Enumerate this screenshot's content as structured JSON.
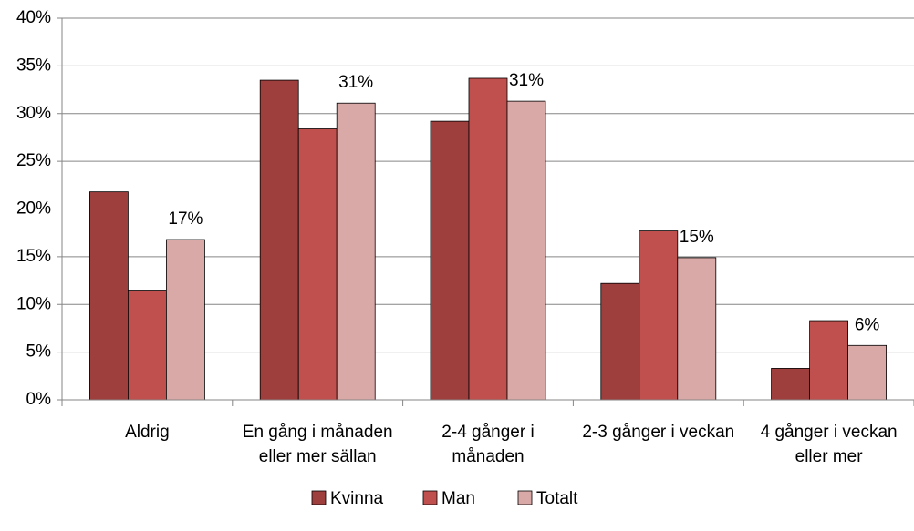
{
  "chart_data": {
    "type": "bar",
    "categories": [
      "Aldrig",
      "En gång i månaden eller mer sällan",
      "2-4 gånger i månaden",
      "2-3 gånger i veckan",
      "4 gånger i veckan eller mer"
    ],
    "series": [
      {
        "name": "Kvinna",
        "color": "#9e3f3e",
        "values": [
          21.8,
          33.5,
          29.2,
          12.2,
          3.3
        ]
      },
      {
        "name": "Man",
        "color": "#c0504d",
        "values": [
          11.5,
          28.4,
          33.7,
          17.7,
          8.3
        ]
      },
      {
        "name": "Totalt",
        "color": "#d9a9a8",
        "values": [
          16.8,
          31.1,
          31.3,
          14.9,
          5.7
        ],
        "value_labels": [
          "17%",
          "31%",
          "31%",
          "15%",
          "6%"
        ]
      }
    ],
    "ylim": [
      0,
      40
    ],
    "yticks": [
      {
        "value": 0,
        "label": "0%"
      },
      {
        "value": 5,
        "label": "5%"
      },
      {
        "value": 10,
        "label": "10%"
      },
      {
        "value": 15,
        "label": "15%"
      },
      {
        "value": 20,
        "label": "20%"
      },
      {
        "value": 25,
        "label": "25%"
      },
      {
        "value": 30,
        "label": "30%"
      },
      {
        "value": 35,
        "label": "35%"
      },
      {
        "value": 40,
        "label": "40%"
      }
    ],
    "grid": true,
    "legend": "bottom"
  }
}
